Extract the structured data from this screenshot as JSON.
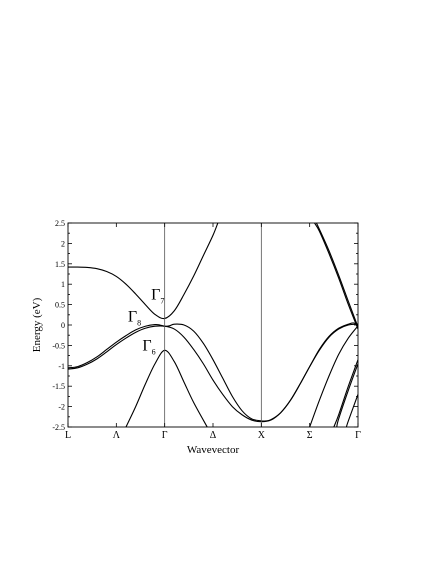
{
  "chart_data": {
    "type": "line",
    "title": "",
    "xlabel": "Wavevector",
    "ylabel": "Energy (eV)",
    "ylim": [
      -2.5,
      2.5
    ],
    "xlim": [
      0,
      3
    ],
    "yticks": [
      -2.5,
      -2,
      -1.5,
      -1,
      -0.5,
      0,
      0.5,
      1,
      1.5,
      2,
      2.5
    ],
    "ytick_labels": [
      "-2.5",
      "-2",
      "-1.5",
      "-1",
      "-0.5",
      "0",
      "0.5",
      "1",
      "1.5",
      "2",
      "2.5"
    ],
    "kpoints": [
      {
        "x": 0,
        "label": "L"
      },
      {
        "x": 0.5,
        "label": "Λ"
      },
      {
        "x": 1,
        "label": "Γ"
      },
      {
        "x": 1.5,
        "label": "Δ"
      },
      {
        "x": 2,
        "label": "X"
      },
      {
        "x": 2.5,
        "label": "Σ"
      },
      {
        "x": 3,
        "label": "Γ"
      }
    ],
    "vertical_lines": [
      1,
      2
    ],
    "grid": false,
    "legend": "none",
    "annotations": [
      {
        "text": "Γ",
        "sub": "7",
        "x": 0.86,
        "y": 0.62
      },
      {
        "text": "Γ",
        "sub": "8",
        "x": 0.62,
        "y": 0.08
      },
      {
        "text": "Γ",
        "sub": "6",
        "x": 0.77,
        "y": -0.62
      }
    ],
    "series": [
      {
        "x": [
          0,
          0.1,
          0.2,
          0.3,
          0.4,
          0.5,
          0.6,
          0.7,
          0.8,
          0.9,
          1.0,
          1.1,
          1.2,
          1.3,
          1.4,
          1.5,
          1.55
        ],
        "y": [
          1.42,
          1.42,
          1.41,
          1.38,
          1.31,
          1.19,
          1.0,
          0.76,
          0.5,
          0.26,
          0.16,
          0.35,
          0.75,
          1.2,
          1.7,
          2.2,
          2.5
        ]
      },
      {
        "x": [
          0,
          0.1,
          0.2,
          0.3,
          0.4,
          0.5,
          0.6,
          0.7,
          0.8,
          0.9,
          0.95,
          1.0,
          1.05,
          1.1,
          1.2,
          1.3,
          1.4,
          1.5,
          1.6,
          1.7,
          1.8,
          1.9,
          2.0,
          2.05,
          2.1,
          2.2,
          2.3,
          2.4,
          2.5,
          2.6,
          2.7,
          2.8,
          2.9,
          2.95,
          3.0
        ],
        "y": [
          -1.05,
          -1.02,
          -0.92,
          -0.78,
          -0.6,
          -0.42,
          -0.26,
          -0.12,
          -0.03,
          0.01,
          0.0,
          -0.03,
          -0.02,
          0.02,
          0.0,
          -0.15,
          -0.45,
          -0.85,
          -1.3,
          -1.75,
          -2.1,
          -2.3,
          -2.35,
          -2.35,
          -2.32,
          -2.15,
          -1.85,
          -1.45,
          -1.02,
          -0.6,
          -0.28,
          -0.08,
          0.02,
          0.05,
          0.01
        ]
      },
      {
        "x": [
          0,
          0.1,
          0.2,
          0.3,
          0.4,
          0.5,
          0.6,
          0.7,
          0.8,
          0.9,
          1.0,
          1.1,
          1.2,
          1.3,
          1.4,
          1.5,
          1.6,
          1.7,
          1.8,
          1.9,
          2.0,
          2.1,
          2.2,
          2.3,
          2.4,
          2.5,
          2.6,
          2.7,
          2.8,
          2.9,
          3.0
        ],
        "y": [
          -1.08,
          -1.05,
          -0.96,
          -0.83,
          -0.66,
          -0.48,
          -0.32,
          -0.18,
          -0.08,
          -0.03,
          -0.03,
          -0.1,
          -0.3,
          -0.6,
          -0.95,
          -1.35,
          -1.7,
          -2.0,
          -2.2,
          -2.33,
          -2.37,
          -2.33,
          -2.15,
          -1.85,
          -1.45,
          -1.02,
          -0.62,
          -0.3,
          -0.1,
          0.0,
          0.02
        ]
      },
      {
        "x": [
          0.6,
          0.7,
          0.8,
          0.9,
          1.0,
          1.1,
          1.2,
          1.3,
          1.44
        ],
        "y": [
          -2.5,
          -2.0,
          -1.45,
          -0.95,
          -0.62,
          -0.9,
          -1.4,
          -1.9,
          -2.5
        ]
      },
      {
        "x": [
          2.55,
          2.6,
          2.7,
          2.8,
          2.9,
          3.0
        ],
        "y": [
          2.5,
          2.3,
          1.75,
          1.15,
          0.5,
          -0.1
        ]
      },
      {
        "x": [
          2.57,
          2.6,
          2.7,
          2.8,
          2.9,
          3.0
        ],
        "y": [
          2.5,
          2.35,
          1.82,
          1.22,
          0.58,
          -0.05
        ]
      },
      {
        "x": [
          2.5,
          2.6,
          2.7,
          2.8,
          2.9,
          3.0
        ],
        "y": [
          -2.5,
          -1.85,
          -1.25,
          -0.72,
          -0.32,
          -0.02
        ]
      },
      {
        "x": [
          2.75,
          2.8,
          2.9,
          3.0
        ],
        "y": [
          -2.5,
          -2.2,
          -1.5,
          -0.85
        ]
      },
      {
        "x": [
          2.78,
          2.8,
          2.9,
          3.0
        ],
        "y": [
          -2.5,
          -2.3,
          -1.6,
          -0.95
        ]
      },
      {
        "x": [
          2.88,
          2.9,
          3.0
        ],
        "y": [
          -2.5,
          -2.35,
          -1.7
        ]
      }
    ]
  }
}
